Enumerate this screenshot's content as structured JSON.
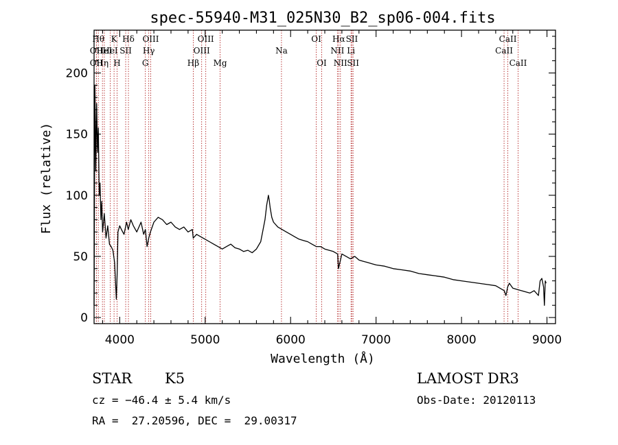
{
  "chart_data": {
    "type": "line",
    "title": "spec-55940-M31_025N30_B2_sp06-004.fits",
    "xlabel": "Wavelength (Å)",
    "ylabel": "Flux (relative)",
    "xlim": [
      3700,
      9100
    ],
    "ylim": [
      -5,
      235
    ],
    "xticks": [
      4000,
      5000,
      6000,
      7000,
      8000,
      9000
    ],
    "yticks": [
      0,
      50,
      100,
      150,
      200
    ],
    "series": [
      {
        "name": "flux",
        "x": [
          3700,
          3710,
          3720,
          3730,
          3740,
          3750,
          3760,
          3770,
          3780,
          3790,
          3800,
          3820,
          3840,
          3860,
          3880,
          3900,
          3920,
          3940,
          3960,
          3970,
          3980,
          4000,
          4020,
          4050,
          4080,
          4100,
          4130,
          4160,
          4200,
          4250,
          4280,
          4300,
          4320,
          4340,
          4360,
          4400,
          4450,
          4500,
          4550,
          4600,
          4650,
          4700,
          4750,
          4800,
          4850,
          4860,
          4900,
          4950,
          5000,
          5050,
          5100,
          5150,
          5200,
          5250,
          5300,
          5350,
          5400,
          5450,
          5500,
          5550,
          5600,
          5650,
          5700,
          5720,
          5740,
          5750,
          5760,
          5780,
          5800,
          5850,
          5900,
          5950,
          6000,
          6050,
          6100,
          6150,
          6200,
          6250,
          6300,
          6350,
          6400,
          6450,
          6500,
          6550,
          6560,
          6600,
          6650,
          6700,
          6750,
          6800,
          6850,
          6900,
          6950,
          7000,
          7100,
          7200,
          7300,
          7400,
          7500,
          7600,
          7700,
          7800,
          7900,
          8000,
          8100,
          8200,
          8300,
          8400,
          8450,
          8500,
          8520,
          8540,
          8560,
          8600,
          8650,
          8700,
          8750,
          8800,
          8850,
          8900,
          8920,
          8940,
          8960,
          8970,
          8980,
          8990
        ],
        "y": [
          10,
          190,
          120,
          175,
          135,
          155,
          100,
          110,
          80,
          95,
          70,
          85,
          65,
          75,
          60,
          58,
          55,
          45,
          15,
          35,
          70,
          75,
          72,
          68,
          78,
          72,
          80,
          75,
          70,
          78,
          68,
          72,
          58,
          65,
          70,
          78,
          82,
          80,
          76,
          78,
          74,
          72,
          74,
          70,
          72,
          65,
          68,
          66,
          64,
          62,
          60,
          58,
          56,
          58,
          60,
          57,
          56,
          54,
          55,
          53,
          56,
          62,
          80,
          92,
          100,
          96,
          90,
          82,
          78,
          74,
          72,
          70,
          68,
          66,
          64,
          63,
          62,
          60,
          58,
          58,
          56,
          55,
          54,
          52,
          40,
          52,
          50,
          48,
          50,
          47,
          46,
          45,
          44,
          43,
          42,
          40,
          39,
          38,
          36,
          35,
          34,
          33,
          31,
          30,
          29,
          28,
          27,
          26,
          24,
          22,
          18,
          25,
          28,
          24,
          23,
          22,
          21,
          20,
          22,
          18,
          30,
          32,
          25,
          10,
          30,
          28
        ]
      }
    ],
    "lines": [
      {
        "wave": 3727,
        "label": "OII",
        "row": 2
      },
      {
        "wave": 3727,
        "label": "OII",
        "row": 3
      },
      {
        "wave": 3750,
        "label": "Hθ",
        "row": 1
      },
      {
        "wave": 3798,
        "label": "Hη",
        "row": 3
      },
      {
        "wave": 3820,
        "label": "HeI",
        "row": 2
      },
      {
        "wave": 3889,
        "label": "HeI",
        "row": 2
      },
      {
        "wave": 3934,
        "label": "K",
        "row": 1
      },
      {
        "wave": 3969,
        "label": "H",
        "row": 3
      },
      {
        "wave": 4070,
        "label": "SII",
        "row": 2
      },
      {
        "wave": 4102,
        "label": "Hδ",
        "row": 1
      },
      {
        "wave": 4300,
        "label": "G",
        "row": 3
      },
      {
        "wave": 4340,
        "label": "Hγ",
        "row": 2
      },
      {
        "wave": 4363,
        "label": "OIII",
        "row": 1
      },
      {
        "wave": 4861,
        "label": "Hβ",
        "row": 3
      },
      {
        "wave": 4959,
        "label": "OIII",
        "row": 2
      },
      {
        "wave": 5007,
        "label": "OIII",
        "row": 1
      },
      {
        "wave": 5175,
        "label": "Mg",
        "row": 3
      },
      {
        "wave": 5893,
        "label": "Na",
        "row": 2
      },
      {
        "wave": 6300,
        "label": "OI",
        "row": 1
      },
      {
        "wave": 6364,
        "label": "OI",
        "row": 3
      },
      {
        "wave": 6548,
        "label": "NII",
        "row": 2
      },
      {
        "wave": 6563,
        "label": "Hα",
        "row": 1
      },
      {
        "wave": 6583,
        "label": "NII",
        "row": 3
      },
      {
        "wave": 6707,
        "label": "Li",
        "row": 2
      },
      {
        "wave": 6717,
        "label": "SII",
        "row": 1
      },
      {
        "wave": 6731,
        "label": "SII",
        "row": 3
      },
      {
        "wave": 8498,
        "label": "CaII",
        "row": 2
      },
      {
        "wave": 8542,
        "label": "CaII",
        "row": 1
      },
      {
        "wave": 8662,
        "label": "CaII",
        "row": 3
      }
    ]
  },
  "info": {
    "class": "STAR",
    "subclass": "K5",
    "survey": "LAMOST DR3",
    "cz": "cz = −46.4 ± 5.4 km/s",
    "obs_date": "Obs-Date: 20120113",
    "coords": "RA =  27.20596, DEC =  29.00317"
  },
  "colors": {
    "axis": "#000000",
    "spectrum": "#000000",
    "line_marker": "#b22222"
  }
}
